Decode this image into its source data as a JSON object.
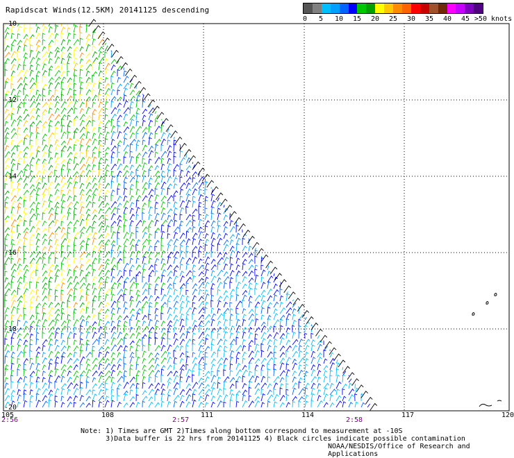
{
  "header": {
    "title": "Rapidscat Winds(12.5KM) 20141125 descending"
  },
  "legend": {
    "colors": [
      "#555555",
      "#808080",
      "#00bfff",
      "#00a0ff",
      "#0064ff",
      "#0000ff",
      "#00c800",
      "#00a000",
      "#ffff00",
      "#ffc800",
      "#ff8c00",
      "#ff6400",
      "#ff0000",
      "#c80000",
      "#a0522d",
      "#6e2a0a",
      "#ff00ff",
      "#c800ff",
      "#8000c0",
      "#500080"
    ],
    "labels": [
      "0",
      "5",
      "10",
      "15",
      "20",
      "25",
      "30",
      "35",
      "40",
      "45",
      ">50 knots"
    ]
  },
  "map": {
    "lon_ticks": [
      "105",
      "108",
      "111",
      "114",
      "117",
      "120"
    ],
    "lat_ticks": [
      "-10",
      "-12",
      "-14",
      "-16",
      "-18",
      "-20"
    ],
    "times": [
      "2:56",
      "2:57",
      "2:58"
    ]
  },
  "notes": {
    "line1": "Note: 1) Times are GMT 2)Times along bottom correspond to measurement at -10S",
    "line2": "      3)Data buffer is 22 hrs from 20141125 4) Black circles indicate possible contamination",
    "credit": "NOAA/NESDIS/Office of Research and Applications"
  }
}
